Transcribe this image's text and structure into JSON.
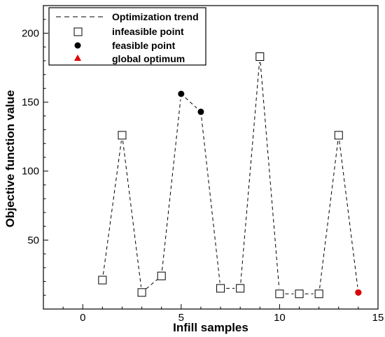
{
  "chart_data": {
    "type": "scatter",
    "title": "",
    "xlabel": "Infill samples",
    "ylabel": "Objective function value",
    "xlim": [
      -2,
      15
    ],
    "ylim": [
      0,
      220
    ],
    "x_ticks": [
      0,
      5,
      10,
      15
    ],
    "y_ticks": [
      50,
      100,
      150,
      200
    ],
    "grid": false,
    "legend_position": "top-left",
    "series": [
      {
        "name": "Optimization trend",
        "marker": "dashed-line",
        "color": "#000000",
        "x": [
          1,
          2,
          3,
          4,
          5,
          6,
          7,
          8,
          9,
          10,
          11,
          12,
          13,
          14
        ],
        "y": [
          21,
          126,
          12,
          24,
          156,
          143,
          15,
          15,
          183,
          11,
          11,
          11,
          126,
          12
        ]
      },
      {
        "name": "infeasible point",
        "marker": "open-square",
        "color": "#000000",
        "x": [
          1,
          2,
          3,
          4,
          7,
          8,
          9,
          10,
          11,
          12,
          13
        ],
        "y": [
          21,
          126,
          12,
          24,
          15,
          15,
          183,
          11,
          11,
          11,
          126
        ]
      },
      {
        "name": "feasible point",
        "marker": "filled-circle",
        "color": "#000000",
        "x": [
          5,
          6,
          14
        ],
        "y": [
          156,
          143,
          12
        ]
      },
      {
        "name": "global optimum",
        "marker": "filled-triangle",
        "color": "#e00000",
        "x": [
          14
        ],
        "y": [
          12
        ]
      }
    ],
    "highlight_color": "#e00000"
  }
}
